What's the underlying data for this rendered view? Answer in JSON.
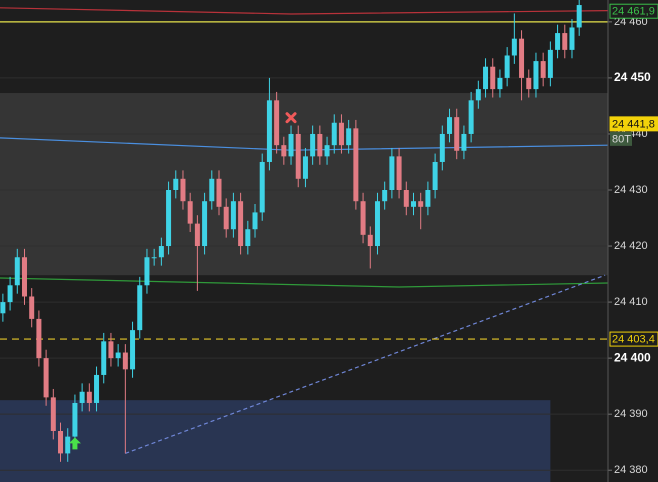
{
  "chart_data": {
    "type": "candlestick",
    "ylim": [
      24377.9,
      24463.9
    ],
    "xlim": [
      -0.4,
      84.0
    ],
    "yticks": [
      {
        "value": 24380,
        "label": "24 380"
      },
      {
        "value": 24390,
        "label": "24 390"
      },
      {
        "value": 24400,
        "label": "24 400"
      },
      {
        "value": 24410,
        "label": "24 410"
      },
      {
        "value": 24420,
        "label": "24 420"
      },
      {
        "value": 24430,
        "label": "24 430"
      },
      {
        "value": 24440,
        "label": "24 440"
      },
      {
        "value": 24450,
        "label": "24 450"
      },
      {
        "value": 24460,
        "label": "24 460"
      }
    ],
    "grid": true,
    "up_color": "#3fd3e6",
    "down_color": "#e27c84",
    "open": [
      24408,
      24410,
      24413,
      24418,
      24411,
      24407,
      24400,
      24393,
      24387,
      24383,
      24386,
      24392,
      24394,
      24392,
      24397,
      24403,
      24400,
      24401,
      24398,
      24405,
      24413,
      24418,
      24418,
      24420,
      24430,
      24432,
      24428,
      24424,
      24420,
      24428,
      24432,
      24427,
      24423,
      24428,
      24420,
      24423,
      24426,
      24435,
      24446,
      24438,
      24436,
      24440,
      24432,
      24436,
      24440,
      24436,
      24438,
      24442,
      24438,
      24441,
      24428,
      24422,
      24420,
      24428,
      24430,
      24436,
      24430,
      24427,
      24428,
      24427,
      24430,
      24435,
      24440,
      24443,
      24437,
      24440,
      24446,
      24448,
      24452,
      24448,
      24450,
      24454,
      24457,
      24450,
      24448,
      24453,
      24450,
      24455,
      24458,
      24455,
      24459
    ],
    "high": [
      24411.5,
      24414.5,
      24419.5,
      24419.5,
      24412.5,
      24408.5,
      24401.5,
      24394.5,
      24388.5,
      24387.5,
      24393.5,
      24395.5,
      24395.5,
      24398.5,
      24404.5,
      24404.5,
      24402.5,
      24402.5,
      24406.5,
      24414.5,
      24419.5,
      24419.5,
      24421.5,
      24431.5,
      24433.5,
      24433.5,
      24429.5,
      24425.5,
      24429.5,
      24433.5,
      24433.5,
      24428.5,
      24429.5,
      24429.5,
      24424.5,
      24427.5,
      24436.5,
      24450,
      24447.5,
      24439.5,
      24441.5,
      24441.5,
      24437.5,
      24441.5,
      24441.5,
      24439.5,
      24443.5,
      24443.5,
      24442.5,
      24442.5,
      24429.5,
      24423.5,
      24429.5,
      24431.5,
      24437.5,
      24437.5,
      24431.5,
      24429.5,
      24429.5,
      24431.5,
      24436.5,
      24441.5,
      24444.5,
      24444.5,
      24441.5,
      24447.5,
      24449.5,
      24453.5,
      24453.5,
      24451.5,
      24455.5,
      24461.5,
      24458.5,
      24451.5,
      24454.5,
      24454.5,
      24456.5,
      24459.5,
      24459.5,
      24460.5,
      24464
    ],
    "low": [
      24406.5,
      24408.5,
      24411.5,
      24409.5,
      24405.5,
      24398.5,
      24391.5,
      24385.5,
      24381.5,
      24381.5,
      24384.5,
      24390.5,
      24390.5,
      24390.5,
      24395.5,
      24398.5,
      24398.5,
      24383,
      24396.5,
      24403.5,
      24411.5,
      24416.5,
      24416.5,
      24418.5,
      24428.5,
      24426.5,
      24422.5,
      24412,
      24418.5,
      24426.5,
      24425.5,
      24421.5,
      24421.5,
      24418.5,
      24418.5,
      24421.5,
      24424.5,
      24433.5,
      24436.5,
      24434.5,
      24434.5,
      24430.5,
      24430.5,
      24434.5,
      24434.5,
      24434.5,
      24436.5,
      24436.5,
      24436.5,
      24426.5,
      24420.5,
      24416,
      24418.5,
      24426.5,
      24428.5,
      24428.5,
      24425.5,
      24425.5,
      24423,
      24425.5,
      24428.5,
      24433.5,
      24438.5,
      24435.5,
      24435.5,
      24438.5,
      24444.5,
      24446.5,
      24446.5,
      24446.5,
      24448.5,
      24452.5,
      24446,
      24446.5,
      24446.5,
      24448.5,
      24448.5,
      24453.5,
      24453.5,
      24453.5,
      24457.5
    ],
    "close": [
      24410,
      24413,
      24418,
      24411,
      24407,
      24400,
      24393,
      24387,
      24383,
      24386,
      24392,
      24394,
      24392,
      24397,
      24403,
      24400,
      24401,
      24398,
      24405,
      24413,
      24418,
      24418,
      24420,
      24430,
      24432,
      24428,
      24424,
      24420,
      24428,
      24432,
      24427,
      24423,
      24428,
      24420,
      24423,
      24426,
      24435,
      24446,
      24438,
      24436,
      24440,
      24432,
      24436,
      24440,
      24436,
      24438,
      24442,
      24438,
      24441,
      24428,
      24422,
      24420,
      24428,
      24430,
      24436,
      24430,
      24427,
      24428,
      24427,
      24430,
      24435,
      24440,
      24443,
      24437,
      24440,
      24446,
      24448,
      24452,
      24448,
      24450,
      24454,
      24457,
      24450,
      24448,
      24453,
      24450,
      24455,
      24458,
      24455,
      24459,
      24463
    ],
    "zones": [
      {
        "from": 24414.8,
        "to": 24447.3,
        "x": [
          -0.4,
          84.0
        ],
        "color": "#3a3a3a"
      },
      {
        "from": 24377.9,
        "to": 24392.5,
        "x": [
          -0.4,
          76
        ],
        "color": "#2c3a5c"
      }
    ],
    "lines": [
      {
        "color": "#b8323a",
        "x": [
          -0.4,
          40,
          84.0
        ],
        "values": [
          24462.5,
          24461.4,
          24462
        ]
      },
      {
        "color": "#4a8fe0",
        "x": [
          -0.4,
          40,
          84.0
        ],
        "values": [
          24439.3,
          24437.1,
          24438
        ]
      },
      {
        "color": "#2f9a3a",
        "x": [
          -0.4,
          55,
          84.0
        ],
        "values": [
          24414.3,
          24412.7,
          24413.4
        ]
      },
      {
        "color": "#6f86d6",
        "x": [
          17,
          83.6
        ],
        "values": [
          24383,
          24414.8
        ],
        "dashed": true
      }
    ],
    "levels": [
      {
        "value": 24460,
        "color": "#e6e24a",
        "dashed": false
      },
      {
        "value": 24403.4,
        "color": "#e6c82a",
        "dashed": true
      }
    ],
    "price_tags": [
      {
        "value": 24461.9,
        "label": "24 461,9",
        "color": "#3ac04a",
        "filled": false
      },
      {
        "value": 24441.8,
        "label": "24 441,8",
        "color": "#f2d20a",
        "filled": true
      },
      {
        "value": 24403.4,
        "label": "24 403,4",
        "color": "#f2d20a",
        "filled": false
      }
    ],
    "timer_label": "80T",
    "markers": [
      {
        "shape": "x",
        "index": 40,
        "value": 24442.9,
        "color": "#f05a5a"
      },
      {
        "shape": "arrow",
        "index": 10,
        "value": 24384.8,
        "color": "#4ae04a"
      }
    ]
  }
}
